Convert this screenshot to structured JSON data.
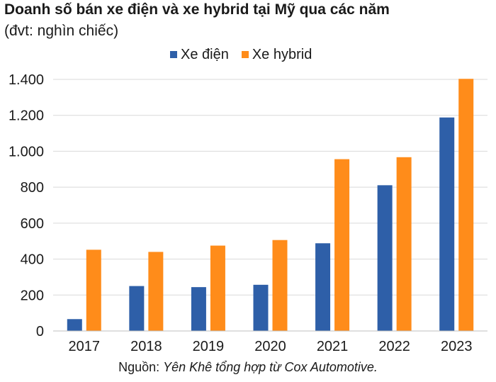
{
  "chart_data": {
    "type": "bar",
    "title": "Doanh số bán xe điện và xe hybrid tại Mỹ qua các năm",
    "subtitle": "(đvt: nghìn chiếc)",
    "categories": [
      "2017",
      "2018",
      "2019",
      "2020",
      "2021",
      "2022",
      "2023"
    ],
    "series": [
      {
        "name": "Xe điện",
        "color": "#2e5fa8",
        "values": [
          66,
          250,
          244,
          257,
          488,
          811,
          1188
        ]
      },
      {
        "name": "Xe hybrid",
        "color": "#ff8c1a",
        "values": [
          452,
          440,
          475,
          506,
          956,
          967,
          1403
        ]
      }
    ],
    "ylim": [
      0,
      1400
    ],
    "yticks": [
      0,
      200,
      400,
      600,
      800,
      1000,
      1200,
      1400
    ],
    "ytick_labels": [
      "0",
      "200",
      "400",
      "600",
      "800",
      "1.000",
      "1.200",
      "1.400"
    ],
    "grid": true,
    "legend": "top-center",
    "xlabel": "",
    "ylabel": ""
  },
  "source": {
    "prefix": "Nguồn: ",
    "text": "Yên Khê tổng hợp từ Cox Automotive."
  }
}
